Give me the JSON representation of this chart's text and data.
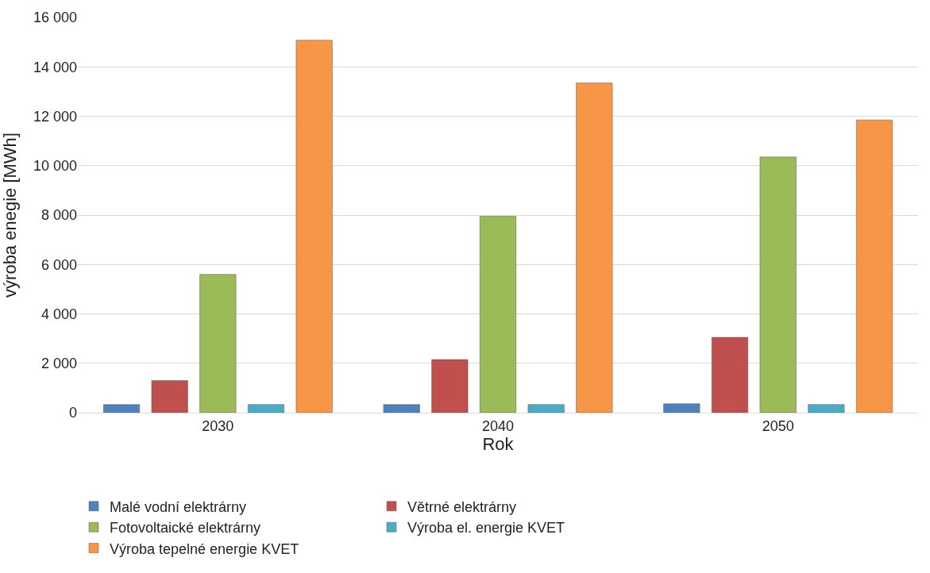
{
  "chart_data": {
    "type": "bar",
    "xlabel": "Rok",
    "ylabel": "výroba enegie [MWh]",
    "categories": [
      "2030",
      "2040",
      "2050"
    ],
    "series": [
      {
        "name": "Malé vodní elektrárny",
        "color": "#4f81bd",
        "values": [
          330,
          330,
          360
        ]
      },
      {
        "name": "Větrné elektrárny",
        "color": "#c0504d",
        "values": [
          1300,
          2150,
          3050
        ]
      },
      {
        "name": "Fotovoltaické elektrárny",
        "color": "#9bbb59",
        "values": [
          5600,
          7950,
          10350
        ]
      },
      {
        "name": "Výroba el. energie KVET",
        "color": "#4bacc6",
        "values": [
          330,
          330,
          330
        ]
      },
      {
        "name": "Výroba tepelné energie KVET",
        "color": "#f79646",
        "values": [
          15080,
          13350,
          11850
        ]
      }
    ],
    "ylim": [
      0,
      16000
    ],
    "yticks": [
      {
        "value": 0,
        "label": "0"
      },
      {
        "value": 2000,
        "label": "2 000"
      },
      {
        "value": 4000,
        "label": "4 000"
      },
      {
        "value": 6000,
        "label": "6 000"
      },
      {
        "value": 8000,
        "label": "8 000"
      },
      {
        "value": 10000,
        "label": "10 000"
      },
      {
        "value": 12000,
        "label": "12 000"
      },
      {
        "value": 14000,
        "label": "14 000"
      },
      {
        "value": 16000,
        "label": "16 000"
      }
    ],
    "grid": "y",
    "legend": "bottom"
  }
}
